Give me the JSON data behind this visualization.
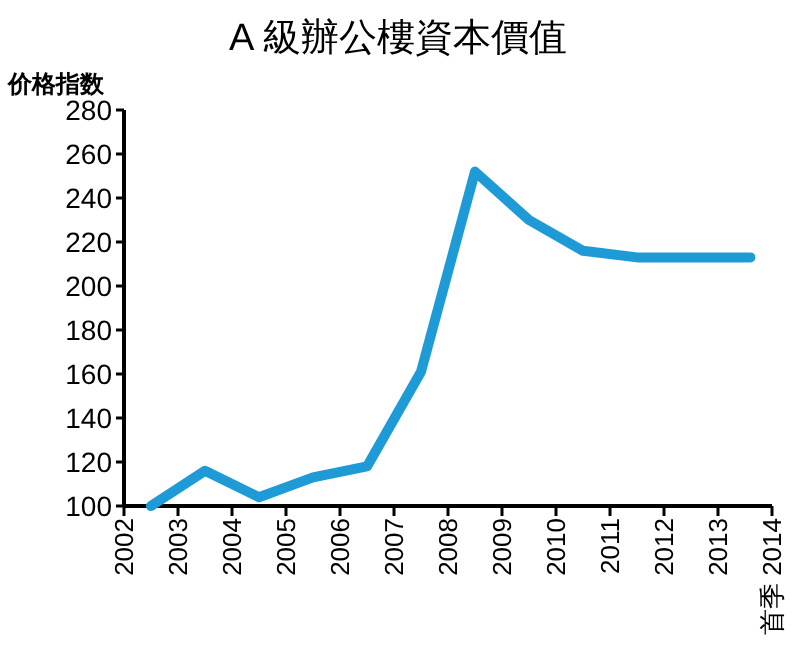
{
  "chart_data": {
    "type": "line",
    "title": "A 級辦公樓資本價值",
    "ylabel": "价格指数",
    "x": [
      2002.5,
      2003.5,
      2004.5,
      2005.5,
      2006.5,
      2007.5,
      2008.5,
      2009.5,
      2010.5,
      2011.5,
      2012.5,
      2013.6
    ],
    "series": [
      {
        "color": "#1e9bd7",
        "values": [
          100,
          116,
          104,
          113,
          118,
          161,
          252,
          230,
          216,
          213,
          213,
          213
        ]
      }
    ],
    "xlim": [
      2002,
      2014
    ],
    "xticks": [
      2002,
      2003,
      2004,
      2005,
      2006,
      2007,
      2008,
      2009,
      2010,
      2011,
      2012,
      2013,
      {
        "value": 2014,
        "label": "首季 2014"
      }
    ],
    "ylim": [
      100,
      280
    ],
    "yticks": [
      100,
      120,
      140,
      160,
      180,
      200,
      220,
      240,
      260,
      280
    ],
    "grid": false,
    "marker": "none",
    "line_style": "solid"
  }
}
